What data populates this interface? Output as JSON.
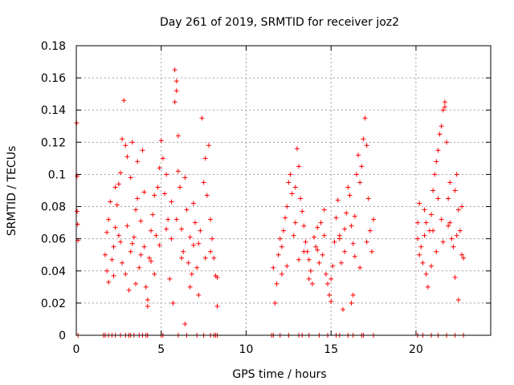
{
  "chart_data": {
    "type": "scatter",
    "title": "Day 261 of 2019, SRMTID for receiver joz2",
    "xlabel": "GPS time / hours",
    "ylabel": "SRMTID / TECUs",
    "xlim": [
      0,
      24.4
    ],
    "ylim": [
      0,
      0.18
    ],
    "xticks": [
      0,
      5,
      10,
      15,
      20
    ],
    "xtick_labels": [
      "0",
      "5",
      "10",
      "15",
      "20"
    ],
    "yticks": [
      0,
      0.02,
      0.04,
      0.06,
      0.08,
      0.1,
      0.12,
      0.14,
      0.16,
      0.18
    ],
    "ytick_labels": [
      "0",
      "0.02",
      "0.04",
      "0.06",
      "0.08",
      "0.1",
      "0.12",
      "0.14",
      "0.16",
      "0.18"
    ],
    "grid": true,
    "marker": "+",
    "color": "#ff0000",
    "series": [
      {
        "name": "joz2",
        "points": [
          [
            0.02,
            0.132
          ],
          [
            0.05,
            0.099
          ],
          [
            0.05,
            0.077
          ],
          [
            0.08,
            0.069
          ],
          [
            0.1,
            0.059
          ],
          [
            0.1,
            0.0
          ],
          [
            1.6,
            0.0
          ],
          [
            1.7,
            0.0
          ],
          [
            1.9,
            0.0
          ],
          [
            2.1,
            0.0
          ],
          [
            2.3,
            0.0
          ],
          [
            2.6,
            0.0
          ],
          [
            2.9,
            0.0
          ],
          [
            3.1,
            0.0
          ],
          [
            3.2,
            0.0
          ],
          [
            3.4,
            0.0
          ],
          [
            3.7,
            0.0
          ],
          [
            3.9,
            0.0
          ],
          [
            4.1,
            0.0
          ],
          [
            4.2,
            0.0
          ],
          [
            5.0,
            0.0
          ],
          [
            5.1,
            0.0
          ],
          [
            6.0,
            0.0
          ],
          [
            6.5,
            0.0
          ],
          [
            7.1,
            0.0
          ],
          [
            7.5,
            0.0
          ],
          [
            7.9,
            0.0
          ],
          [
            8.1,
            0.0
          ],
          [
            8.2,
            0.0
          ],
          [
            8.3,
            0.0
          ],
          [
            11.5,
            0.0
          ],
          [
            11.6,
            0.0
          ],
          [
            12.0,
            0.0
          ],
          [
            12.5,
            0.0
          ],
          [
            13.1,
            0.0
          ],
          [
            13.3,
            0.0
          ],
          [
            13.7,
            0.0
          ],
          [
            14.3,
            0.0
          ],
          [
            14.8,
            0.0
          ],
          [
            15.3,
            0.0
          ],
          [
            15.5,
            0.0
          ],
          [
            16.0,
            0.0
          ],
          [
            16.3,
            0.0
          ],
          [
            16.8,
            0.0
          ],
          [
            16.9,
            0.0
          ],
          [
            17.5,
            0.0
          ],
          [
            20.1,
            0.0
          ],
          [
            20.4,
            0.0
          ],
          [
            20.9,
            0.0
          ],
          [
            21.3,
            0.0
          ],
          [
            21.8,
            0.0
          ],
          [
            22.3,
            0.0
          ],
          [
            22.8,
            0.0
          ],
          [
            2.8,
            0.146
          ],
          [
            2.7,
            0.122
          ],
          [
            2.9,
            0.118
          ],
          [
            3.0,
            0.111
          ],
          [
            2.6,
            0.101
          ],
          [
            3.3,
            0.12
          ],
          [
            3.6,
            0.108
          ],
          [
            3.9,
            0.115
          ],
          [
            3.2,
            0.098
          ],
          [
            2.5,
            0.094
          ],
          [
            2.3,
            0.092
          ],
          [
            2.4,
            0.081
          ],
          [
            2.0,
            0.083
          ],
          [
            1.9,
            0.072
          ],
          [
            1.8,
            0.064
          ],
          [
            1.7,
            0.05
          ],
          [
            1.8,
            0.04
          ],
          [
            1.9,
            0.033
          ],
          [
            2.1,
            0.047
          ],
          [
            2.2,
            0.055
          ],
          [
            2.5,
            0.062
          ],
          [
            2.7,
            0.045
          ],
          [
            2.9,
            0.038
          ],
          [
            3.1,
            0.028
          ],
          [
            3.2,
            0.052
          ],
          [
            3.4,
            0.061
          ],
          [
            3.5,
            0.032
          ],
          [
            3.7,
            0.042
          ],
          [
            3.8,
            0.071
          ],
          [
            4.0,
            0.055
          ],
          [
            4.1,
            0.03
          ],
          [
            4.2,
            0.022
          ],
          [
            4.2,
            0.018
          ],
          [
            4.3,
            0.048
          ],
          [
            4.4,
            0.065
          ],
          [
            4.5,
            0.075
          ],
          [
            4.6,
            0.087
          ],
          [
            4.7,
            0.062
          ],
          [
            4.8,
            0.092
          ],
          [
            4.9,
            0.104
          ],
          [
            5.0,
            0.121
          ],
          [
            5.1,
            0.11
          ],
          [
            5.2,
            0.088
          ],
          [
            5.3,
            0.1
          ],
          [
            5.4,
            0.072
          ],
          [
            5.5,
            0.035
          ],
          [
            5.6,
            0.06
          ],
          [
            5.7,
            0.02
          ],
          [
            5.8,
            0.165
          ],
          [
            5.8,
            0.145
          ],
          [
            5.9,
            0.158
          ],
          [
            5.9,
            0.152
          ],
          [
            6.0,
            0.124
          ],
          [
            6.0,
            0.102
          ],
          [
            6.1,
            0.092
          ],
          [
            6.2,
            0.066
          ],
          [
            6.3,
            0.052
          ],
          [
            6.4,
            0.098
          ],
          [
            6.5,
            0.078
          ],
          [
            6.6,
            0.045
          ],
          [
            6.7,
            0.03
          ],
          [
            6.8,
            0.038
          ],
          [
            6.9,
            0.056
          ],
          [
            7.0,
            0.07
          ],
          [
            7.1,
            0.042
          ],
          [
            7.2,
            0.025
          ],
          [
            7.3,
            0.065
          ],
          [
            7.4,
            0.135
          ],
          [
            7.5,
            0.095
          ],
          [
            7.6,
            0.11
          ],
          [
            7.7,
            0.087
          ],
          [
            7.8,
            0.118
          ],
          [
            7.9,
            0.072
          ],
          [
            8.0,
            0.06
          ],
          [
            8.1,
            0.048
          ],
          [
            8.2,
            0.037
          ],
          [
            8.3,
            0.036
          ],
          [
            8.3,
            0.018
          ],
          [
            6.4,
            0.007
          ],
          [
            2.2,
            0.037
          ],
          [
            2.6,
            0.058
          ],
          [
            3.0,
            0.068
          ],
          [
            3.3,
            0.057
          ],
          [
            3.6,
            0.085
          ],
          [
            3.8,
            0.05
          ],
          [
            4.4,
            0.046
          ],
          [
            4.6,
            0.038
          ],
          [
            4.9,
            0.056
          ],
          [
            5.3,
            0.066
          ],
          [
            5.6,
            0.083
          ],
          [
            6.2,
            0.048
          ],
          [
            6.7,
            0.061
          ],
          [
            7.2,
            0.057
          ],
          [
            7.6,
            0.048
          ],
          [
            7.9,
            0.052
          ],
          [
            2.3,
            0.067
          ],
          [
            3.5,
            0.078
          ],
          [
            4.0,
            0.089
          ],
          [
            5.9,
            0.072
          ],
          [
            6.9,
            0.082
          ],
          [
            11.7,
            0.02
          ],
          [
            11.8,
            0.032
          ],
          [
            11.6,
            0.042
          ],
          [
            11.9,
            0.05
          ],
          [
            12.0,
            0.06
          ],
          [
            12.1,
            0.055
          ],
          [
            12.2,
            0.065
          ],
          [
            12.3,
            0.073
          ],
          [
            12.4,
            0.08
          ],
          [
            12.5,
            0.095
          ],
          [
            12.6,
            0.1
          ],
          [
            12.7,
            0.088
          ],
          [
            12.8,
            0.062
          ],
          [
            12.9,
            0.07
          ],
          [
            13.0,
            0.116
          ],
          [
            13.1,
            0.105
          ],
          [
            13.2,
            0.085
          ],
          [
            13.3,
            0.077
          ],
          [
            13.4,
            0.068
          ],
          [
            13.5,
            0.058
          ],
          [
            13.6,
            0.052
          ],
          [
            13.7,
            0.047
          ],
          [
            13.8,
            0.04
          ],
          [
            13.9,
            0.032
          ],
          [
            14.0,
            0.061
          ],
          [
            14.1,
            0.055
          ],
          [
            14.2,
            0.067
          ],
          [
            14.3,
            0.045
          ],
          [
            14.4,
            0.07
          ],
          [
            14.5,
            0.05
          ],
          [
            14.6,
            0.062
          ],
          [
            14.7,
            0.038
          ],
          [
            14.8,
            0.032
          ],
          [
            14.9,
            0.025
          ],
          [
            15.0,
            0.021
          ],
          [
            15.1,
            0.043
          ],
          [
            15.2,
            0.058
          ],
          [
            15.3,
            0.073
          ],
          [
            15.4,
            0.084
          ],
          [
            15.5,
            0.06
          ],
          [
            15.6,
            0.045
          ],
          [
            15.7,
            0.016
          ],
          [
            15.8,
            0.052
          ],
          [
            15.9,
            0.076
          ],
          [
            16.0,
            0.092
          ],
          [
            16.1,
            0.087
          ],
          [
            16.2,
            0.068
          ],
          [
            16.3,
            0.057
          ],
          [
            16.4,
            0.049
          ],
          [
            16.5,
            0.1
          ],
          [
            16.6,
            0.112
          ],
          [
            16.7,
            0.095
          ],
          [
            16.8,
            0.105
          ],
          [
            16.9,
            0.122
          ],
          [
            17.0,
            0.135
          ],
          [
            17.1,
            0.118
          ],
          [
            17.2,
            0.085
          ],
          [
            17.3,
            0.065
          ],
          [
            17.4,
            0.052
          ],
          [
            17.5,
            0.072
          ],
          [
            16.2,
            0.02
          ],
          [
            16.3,
            0.025
          ],
          [
            15.0,
            0.035
          ],
          [
            13.7,
            0.035
          ],
          [
            12.1,
            0.038
          ],
          [
            12.4,
            0.043
          ],
          [
            13.1,
            0.047
          ],
          [
            14.2,
            0.053
          ],
          [
            15.5,
            0.062
          ],
          [
            16.7,
            0.042
          ],
          [
            17.1,
            0.058
          ],
          [
            12.9,
            0.092
          ],
          [
            13.4,
            0.052
          ],
          [
            14.6,
            0.078
          ],
          [
            15.8,
            0.066
          ],
          [
            16.4,
            0.074
          ],
          [
            20.2,
            0.082
          ],
          [
            20.1,
            0.07
          ],
          [
            20.1,
            0.06
          ],
          [
            20.2,
            0.05
          ],
          [
            20.3,
            0.055
          ],
          [
            20.4,
            0.045
          ],
          [
            20.5,
            0.062
          ],
          [
            20.6,
            0.038
          ],
          [
            20.7,
            0.03
          ],
          [
            20.8,
            0.065
          ],
          [
            20.9,
            0.075
          ],
          [
            21.0,
            0.09
          ],
          [
            21.1,
            0.1
          ],
          [
            21.2,
            0.108
          ],
          [
            21.3,
            0.115
          ],
          [
            21.4,
            0.125
          ],
          [
            21.5,
            0.13
          ],
          [
            21.6,
            0.14
          ],
          [
            21.7,
            0.145
          ],
          [
            21.7,
            0.142
          ],
          [
            21.8,
            0.12
          ],
          [
            21.9,
            0.085
          ],
          [
            22.0,
            0.07
          ],
          [
            22.1,
            0.06
          ],
          [
            22.2,
            0.055
          ],
          [
            22.3,
            0.09
          ],
          [
            22.4,
            0.1
          ],
          [
            22.5,
            0.078
          ],
          [
            22.6,
            0.065
          ],
          [
            22.7,
            0.05
          ],
          [
            22.8,
            0.048
          ],
          [
            22.5,
            0.022
          ],
          [
            22.3,
            0.036
          ],
          [
            21.2,
            0.052
          ],
          [
            21.0,
            0.065
          ],
          [
            20.6,
            0.07
          ],
          [
            20.9,
            0.043
          ],
          [
            21.5,
            0.072
          ],
          [
            21.9,
            0.068
          ],
          [
            22.0,
            0.095
          ],
          [
            22.4,
            0.062
          ],
          [
            22.7,
            0.08
          ],
          [
            20.5,
            0.078
          ],
          [
            21.3,
            0.085
          ],
          [
            21.6,
            0.058
          ]
        ]
      }
    ]
  }
}
